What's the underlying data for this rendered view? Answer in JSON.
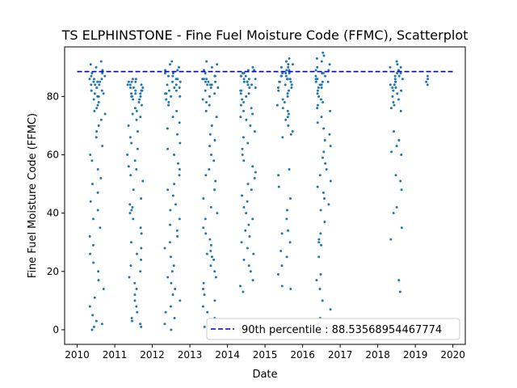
{
  "chart_data": {
    "type": "scatter",
    "title": "TS ELPHINSTONE - Fine Fuel Moisture Code (FFMC), Scatterplot",
    "xlabel": "Date",
    "ylabel": "Fine Fuel Moisture Code (FFMC)",
    "xlim": [
      "2009-09-01",
      "2020-05-01"
    ],
    "ylim": [
      -5,
      97
    ],
    "xticks": [
      "2010",
      "2011",
      "2012",
      "2013",
      "2014",
      "2015",
      "2016",
      "2017",
      "2018",
      "2019",
      "2020"
    ],
    "yticks": [
      0,
      20,
      40,
      60,
      80
    ],
    "grid": false,
    "legend_position": "lower-right",
    "series_color": "#1f77b4",
    "reference_line": {
      "label": "90th percentile : 88.53568954467774",
      "value": 88.53568954467774,
      "x_start": "2010-01-01",
      "x_end": "2020-01-01",
      "color": "#0000cc",
      "style": "dashed"
    },
    "seasons": [
      {
        "start": "2010-05-01",
        "end": "2010-10-01",
        "values": [
          92,
          91,
          90,
          89,
          88,
          88,
          87,
          87,
          86,
          86,
          86,
          85,
          85,
          85,
          84,
          84,
          84,
          83,
          83,
          82,
          82,
          81,
          81,
          80,
          80,
          79,
          78,
          77,
          76,
          75,
          74,
          72,
          70,
          68,
          66,
          63,
          60,
          58,
          55,
          52,
          50,
          47,
          44,
          41,
          38,
          35,
          32,
          29,
          26,
          23,
          20,
          17,
          14,
          11,
          8,
          5,
          3,
          2,
          1,
          0
        ]
      },
      {
        "start": "2011-05-01",
        "end": "2011-10-01",
        "values": [
          86,
          86,
          85,
          85,
          85,
          84,
          84,
          84,
          83,
          83,
          83,
          82,
          82,
          82,
          81,
          81,
          81,
          80,
          80,
          80,
          79,
          79,
          78,
          77,
          76,
          75,
          74,
          73,
          72,
          70,
          68,
          66,
          64,
          62,
          60,
          58,
          56,
          55,
          53,
          51,
          48,
          45,
          43,
          42,
          41,
          40,
          38,
          35,
          33,
          30,
          28,
          26,
          24,
          22,
          20,
          18,
          16,
          14,
          12,
          10,
          8,
          6,
          4,
          3,
          2,
          1
        ]
      },
      {
        "start": "2012-05-01",
        "end": "2012-10-01",
        "values": [
          92,
          91,
          90,
          89,
          89,
          88,
          88,
          87,
          87,
          86,
          86,
          85,
          85,
          84,
          84,
          83,
          83,
          82,
          82,
          81,
          81,
          80,
          80,
          79,
          78,
          77,
          75,
          73,
          71,
          69,
          67,
          64,
          62,
          60,
          57,
          55,
          53,
          50,
          48,
          46,
          43,
          41,
          38,
          36,
          34,
          32,
          30,
          28,
          25,
          22,
          20,
          18,
          16,
          14,
          12,
          10,
          8,
          6,
          4,
          2,
          0
        ]
      },
      {
        "start": "2013-05-01",
        "end": "2013-10-01",
        "values": [
          92,
          91,
          90,
          89,
          88,
          87,
          87,
          86,
          86,
          86,
          85,
          85,
          85,
          84,
          84,
          84,
          83,
          83,
          82,
          81,
          80,
          79,
          78,
          77,
          75,
          73,
          70,
          67,
          65,
          63,
          60,
          58,
          55,
          53,
          51,
          48,
          45,
          42,
          40,
          38,
          35,
          33,
          31,
          29,
          27,
          26,
          25,
          24,
          22,
          20,
          18,
          16,
          14,
          12,
          10,
          8,
          6,
          4,
          2,
          1
        ]
      },
      {
        "start": "2014-05-01",
        "end": "2014-10-01",
        "values": [
          90,
          89,
          89,
          88,
          88,
          87,
          87,
          87,
          86,
          86,
          86,
          85,
          85,
          85,
          84,
          84,
          83,
          83,
          82,
          82,
          81,
          81,
          80,
          79,
          78,
          77,
          76,
          75,
          74,
          73,
          72,
          70,
          68,
          66,
          64,
          62,
          60,
          58,
          56,
          54,
          52,
          50,
          48,
          46,
          44,
          42,
          40,
          38,
          36,
          34,
          32,
          30,
          28,
          26,
          24,
          22,
          20,
          17,
          15,
          13
        ]
      },
      {
        "start": "2015-05-01",
        "end": "2015-10-01",
        "values": [
          93,
          92,
          91,
          91,
          90,
          90,
          89,
          89,
          88,
          88,
          88,
          87,
          87,
          87,
          86,
          86,
          86,
          85,
          85,
          85,
          84,
          84,
          83,
          83,
          82,
          82,
          81,
          80,
          79,
          78,
          77,
          76,
          75,
          74,
          73,
          72,
          70,
          68,
          67,
          66,
          55,
          53,
          49,
          45,
          41,
          38,
          34,
          33,
          30,
          27,
          25,
          22,
          19,
          15,
          14
        ]
      },
      {
        "start": "2016-05-01",
        "end": "2016-10-01",
        "values": [
          95,
          94,
          93,
          92,
          91,
          90,
          89,
          89,
          88,
          88,
          87,
          87,
          86,
          86,
          86,
          85,
          85,
          85,
          84,
          84,
          83,
          83,
          82,
          81,
          80,
          79,
          78,
          77,
          76,
          75,
          73,
          71,
          69,
          67,
          65,
          63,
          61,
          59,
          57,
          55,
          53,
          51,
          49,
          47,
          45,
          43,
          41,
          37,
          33,
          31,
          30,
          29,
          25,
          19,
          17,
          14,
          10,
          7,
          4,
          2
        ]
      },
      {
        "start": "2018-05-01",
        "end": "2018-09-01",
        "values": [
          92,
          91,
          90,
          90,
          89,
          89,
          88,
          88,
          87,
          87,
          86,
          86,
          85,
          85,
          84,
          84,
          83,
          83,
          82,
          82,
          81,
          80,
          79,
          78,
          77,
          76,
          75,
          68,
          65,
          63,
          61,
          60,
          53,
          51,
          48,
          42,
          40,
          35,
          31,
          17,
          13
        ]
      },
      {
        "start": "2019-04-15",
        "end": "2019-05-15",
        "values": [
          87,
          86,
          85,
          84
        ]
      }
    ]
  }
}
